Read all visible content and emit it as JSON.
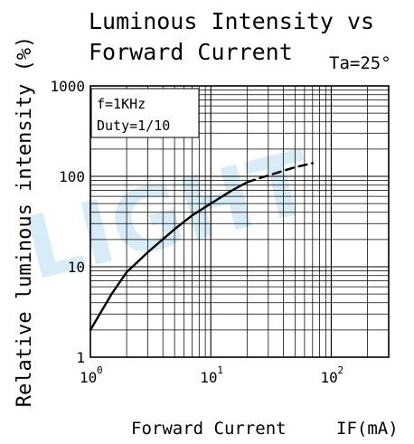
{
  "chart_data": {
    "type": "line",
    "title_line1": "Luminous Intensity vs",
    "title_line2": "Forward Current",
    "condition": "Ta=25°",
    "xlabel": "Forward Current",
    "xunit": "IF(mA)",
    "ylabel": "Relative luminous intensity (%)",
    "xscale": "log",
    "yscale": "log",
    "xlim": [
      1,
      300
    ],
    "ylim": [
      1,
      1000
    ],
    "x_tick_labels": [
      {
        "base": "10",
        "exp": "0"
      },
      {
        "base": "10",
        "exp": "1"
      },
      {
        "base": "10",
        "exp": "2"
      }
    ],
    "y_tick_labels": [
      "1000",
      "100",
      "10",
      "1"
    ],
    "grid": true,
    "legend": {
      "lines": [
        "f=1KHz",
        "Duty=1/10"
      ],
      "placement": "top-left"
    },
    "series": [
      {
        "style": "solid",
        "x": [
          1,
          1.5,
          2,
          3,
          5,
          7,
          10,
          15,
          20
        ],
        "y": [
          2,
          5,
          8.7,
          14.5,
          26,
          37,
          50,
          70,
          86
        ]
      },
      {
        "style": "dashed",
        "x": [
          20,
          25,
          30,
          40,
          50,
          70
        ],
        "y": [
          86,
          95,
          102,
          115,
          126,
          140
        ]
      }
    ],
    "watermark": "LIGHT",
    "line_color": "#000000",
    "grid_color": "#000000",
    "watermark_color": "#d7ecf7"
  }
}
